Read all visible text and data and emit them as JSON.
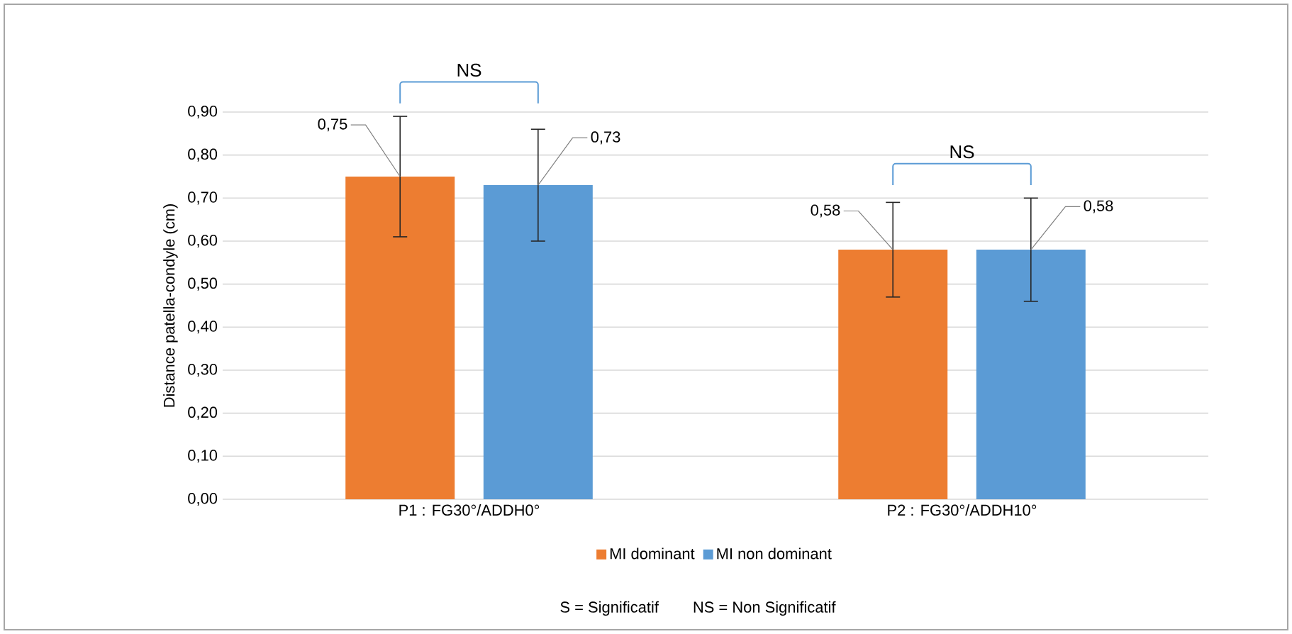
{
  "chart_data": {
    "type": "bar",
    "ylabel": "Distance patella-condyle (cm)",
    "categories": [
      "P1 : FG30°/ADDH0°",
      "P2 : FG30°/ADDH10°"
    ],
    "series": [
      {
        "name": "MI dominant",
        "color": "#ed7d31",
        "values": [
          0.75,
          0.58
        ],
        "errors": [
          0.14,
          0.11
        ],
        "value_labels": [
          "0,75",
          "0,58"
        ]
      },
      {
        "name": "MI non dominant",
        "color": "#5b9bd5",
        "values": [
          0.73,
          0.58
        ],
        "errors": [
          0.13,
          0.12
        ],
        "value_labels": [
          "0,73",
          "0,58"
        ]
      }
    ],
    "ylim": [
      0,
      0.9
    ],
    "yticks": [
      {
        "value": 0,
        "label": "0,00"
      },
      {
        "value": 0.1,
        "label": "0,10"
      },
      {
        "value": 0.2,
        "label": "0,20"
      },
      {
        "value": 0.3,
        "label": "0,30"
      },
      {
        "value": 0.4,
        "label": "0,40"
      },
      {
        "value": 0.5,
        "label": "0,50"
      },
      {
        "value": 0.6,
        "label": "0,60"
      },
      {
        "value": 0.7,
        "label": "0,70"
      },
      {
        "value": 0.8,
        "label": "0,80"
      },
      {
        "value": 0.9,
        "label": "0,90"
      }
    ],
    "grid": "y",
    "legend": "bottom",
    "annotations": [
      "NS",
      "NS",
      "S = Significatif",
      "NS = Non Significatif"
    ]
  }
}
